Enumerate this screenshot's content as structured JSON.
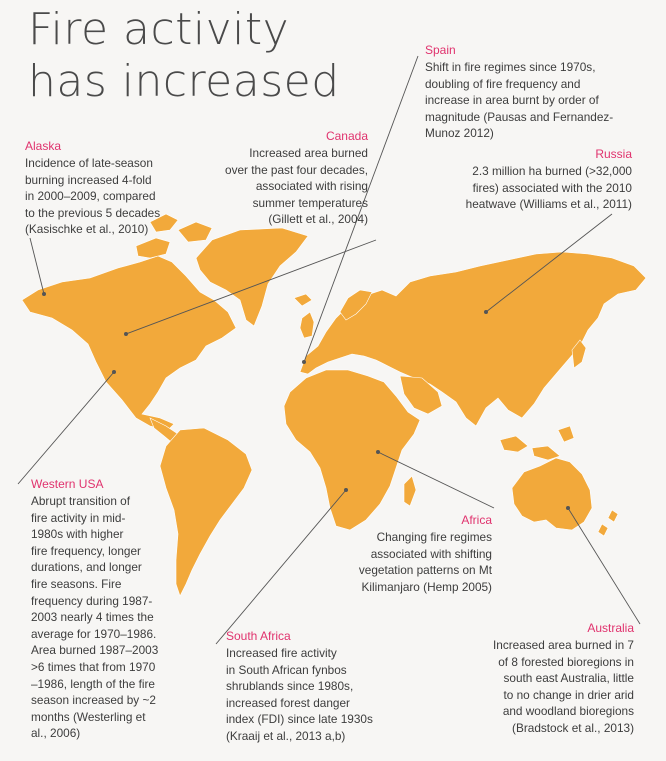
{
  "title": {
    "line1": "Fire activity",
    "line2": "has increased"
  },
  "colors": {
    "land": "#f2a93b",
    "region_label": "#e0336e",
    "text": "#3d3d3d",
    "background": "#f7f6f4"
  },
  "callouts": {
    "alaska": {
      "region": "Alaska",
      "text": "Incidence of late-season\nburning increased 4-fold\nin 2000–2009, compared\nto the previous 5 decades\n(Kasischke et al., 2010)"
    },
    "canada": {
      "region": "Canada",
      "text": "Increased area burned\nover the past four decades,\nassociated with rising\nsummer temperatures\n(Gillett et al., 2004)"
    },
    "spain": {
      "region": "Spain",
      "text": "Shift in fire regimes since 1970s,\ndoubling of fire frequency and\nincrease in area burnt by order of\nmagnitude (Pausas and Fernandez-\nMunoz 2012)"
    },
    "russia": {
      "region": "Russia",
      "text": "2.3 million ha burned (>32,000\nfires) associated with the 2010\nheatwave (Williams et al., 2011)"
    },
    "western_usa": {
      "region": "Western USA",
      "text": "Abrupt transition of\nfire activity in mid-\n1980s with higher\nfire frequency, longer\ndurations, and longer\nfire seasons. Fire\nfrequency during 1987-\n2003 nearly 4 times the\naverage for 1970–1986.\nArea burned 1987–2003\n>6 times that from 1970\n–1986, length of the fire\nseason increased by ~2\nmonths (Westerling et\nal., 2006)"
    },
    "africa": {
      "region": "Africa",
      "text": "Changing fire regimes\nassociated with shifting\nvegetation patterns on Mt\nKilimanjaro (Hemp 2005)"
    },
    "south_africa": {
      "region": "South Africa",
      "text": "Increased fire activity\nin South African fynbos\nshrublands since 1980s,\nincreased forest danger\nindex (FDI) since late 1930s\n(Kraaij et al., 2013 a,b)"
    },
    "australia": {
      "region": "Australia",
      "text": "Increased area burned in 7\nof 8 forested bioregions in\nsouth east Australia, little\nto no change in drier arid\nand woodland bioregions\n(Bradstock et al., 2013)"
    }
  }
}
